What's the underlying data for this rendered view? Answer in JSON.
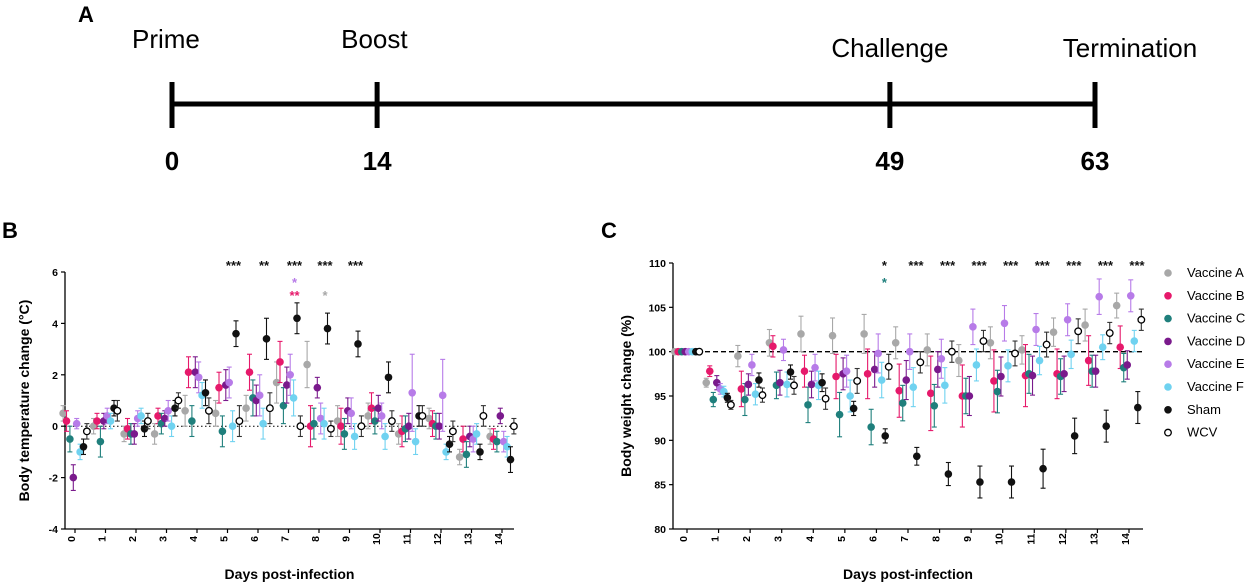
{
  "colors": {
    "Vaccine A": "#a8a8a8",
    "Vaccine B": "#e6196b",
    "Vaccine C": "#1f7f7c",
    "Vaccine D": "#7a1a8c",
    "Vaccine E": "#b77be8",
    "Vaccine F": "#6fd2f0",
    "Sham": "#111111",
    "WCV": "#ffffff"
  },
  "panelA": {
    "letter": "A",
    "events": [
      {
        "label": "Prime",
        "day": "0",
        "value": 0
      },
      {
        "label": "Boost",
        "day": "14",
        "value": 14
      },
      {
        "label": "Challenge",
        "day": "49",
        "value": 49
      },
      {
        "label": "Termination",
        "day": "63",
        "value": 63
      }
    ]
  },
  "chart_data": [
    {
      "panel": "B",
      "type": "scatter",
      "title": "",
      "xlabel": "Days post-infection",
      "ylabel": "Body temperature change (°C)",
      "ylim": [
        -4,
        6
      ],
      "yticks": [
        "-4",
        "-2",
        "0",
        "2",
        "4",
        "6"
      ],
      "categories": [
        "0",
        "1",
        "2",
        "3",
        "4",
        "5",
        "6",
        "7",
        "8",
        "9",
        "10",
        "11",
        "12",
        "13",
        "14"
      ],
      "reference_line": 0,
      "series": [
        {
          "name": "Vaccine A",
          "values": [
            0.5,
            0.0,
            -0.3,
            -0.3,
            0.6,
            0.5,
            0.7,
            1.7,
            2.4,
            0.2,
            0.4,
            -0.3,
            0.3,
            -1.2,
            -0.4
          ],
          "errors": [
            0.3,
            0.3,
            0.3,
            0.4,
            0.6,
            0.5,
            0.5,
            0.8,
            0.9,
            0.6,
            0.5,
            0.4,
            0.4,
            0.3,
            0.3
          ]
        },
        {
          "name": "Vaccine B",
          "values": [
            0.2,
            0.2,
            -0.1,
            0.4,
            2.1,
            1.5,
            2.1,
            2.5,
            0.0,
            0.0,
            0.7,
            -0.2,
            0.1,
            -0.5,
            -0.5
          ],
          "errors": [
            0.4,
            0.3,
            0.4,
            0.3,
            0.6,
            0.6,
            0.7,
            0.8,
            0.8,
            0.7,
            0.6,
            0.6,
            0.5,
            0.5,
            0.4
          ]
        },
        {
          "name": "Vaccine C",
          "values": [
            -0.5,
            -0.6,
            -0.3,
            0.1,
            0.2,
            -0.2,
            1.1,
            0.8,
            0.1,
            -0.3,
            0.2,
            -0.1,
            0.0,
            -1.1,
            -0.6
          ],
          "errors": [
            0.5,
            0.6,
            0.4,
            0.4,
            0.6,
            0.6,
            0.7,
            0.7,
            0.6,
            0.6,
            0.5,
            0.5,
            0.5,
            0.5,
            0.4
          ]
        },
        {
          "name": "Vaccine D",
          "values": [
            -2.0,
            0.2,
            -0.3,
            0.3,
            2.1,
            1.6,
            1.0,
            1.6,
            1.5,
            0.6,
            0.7,
            0.0,
            0.0,
            -0.4,
            0.4
          ],
          "errors": [
            0.5,
            0.3,
            0.4,
            0.3,
            0.6,
            0.6,
            0.6,
            0.7,
            0.4,
            0.5,
            0.5,
            0.5,
            0.5,
            0.4,
            0.3
          ]
        },
        {
          "name": "Vaccine E",
          "values": [
            0.1,
            0.4,
            0.3,
            0.6,
            1.9,
            1.7,
            1.2,
            2.0,
            0.3,
            0.5,
            0.4,
            1.3,
            1.2,
            -0.5,
            -0.6
          ],
          "errors": [
            0.2,
            0.3,
            0.3,
            0.4,
            0.6,
            0.6,
            0.8,
            0.8,
            0.6,
            0.6,
            0.5,
            1.5,
            1.4,
            0.5,
            0.4
          ]
        },
        {
          "name": "Vaccine F",
          "values": [
            -1.0,
            0.2,
            0.4,
            0.0,
            1.2,
            0.0,
            0.1,
            1.1,
            0.1,
            -0.4,
            -0.4,
            -0.6,
            -1.0,
            -0.3,
            -0.8
          ],
          "errors": [
            0.3,
            0.3,
            0.3,
            0.4,
            0.5,
            0.6,
            0.6,
            0.7,
            0.6,
            0.5,
            0.5,
            0.5,
            0.3,
            0.4,
            0.4
          ]
        },
        {
          "name": "Sham",
          "values": [
            -0.8,
            0.7,
            -0.1,
            0.7,
            1.3,
            3.6,
            3.4,
            4.2,
            3.8,
            3.2,
            1.9,
            0.4,
            -0.7,
            -1.0,
            -1.3
          ],
          "errors": [
            0.3,
            0.3,
            0.3,
            0.3,
            0.5,
            0.5,
            0.8,
            0.6,
            0.6,
            0.5,
            0.6,
            0.4,
            0.3,
            0.3,
            0.5
          ]
        },
        {
          "name": "WCV",
          "values": [
            -0.2,
            0.6,
            0.2,
            1.0,
            0.6,
            0.2,
            0.7,
            0.0,
            -0.1,
            0.0,
            0.2,
            0.4,
            -0.2,
            0.4,
            0.0
          ],
          "errors": [
            0.3,
            0.4,
            0.3,
            0.3,
            0.5,
            0.6,
            0.6,
            0.4,
            0.3,
            0.4,
            0.4,
            0.4,
            0.4,
            0.4,
            0.3
          ]
        }
      ],
      "significance": [
        {
          "day": 5,
          "row": 0,
          "text": "***",
          "series": "Sham"
        },
        {
          "day": 6,
          "row": 0,
          "text": "**",
          "series": "Sham"
        },
        {
          "day": 7,
          "row": 0,
          "text": "***",
          "series": "Sham"
        },
        {
          "day": 7,
          "row": 1,
          "text": "*",
          "series": "Vaccine E"
        },
        {
          "day": 7,
          "row": 2,
          "text": "**",
          "series": "Vaccine B"
        },
        {
          "day": 8,
          "row": 0,
          "text": "***",
          "series": "Sham"
        },
        {
          "day": 8,
          "row": 2,
          "text": "*",
          "series": "Vaccine A"
        },
        {
          "day": 9,
          "row": 0,
          "text": "***",
          "series": "Sham"
        }
      ]
    },
    {
      "panel": "C",
      "type": "scatter",
      "title": "",
      "xlabel": "Days post-infection",
      "ylabel": "Body weight change (%)",
      "ylim": [
        80,
        110
      ],
      "yticks": [
        "80",
        "85",
        "90",
        "95",
        "100",
        "105",
        "110"
      ],
      "categories": [
        "0",
        "1",
        "2",
        "3",
        "4",
        "5",
        "6",
        "7",
        "8",
        "9",
        "10",
        "11",
        "12",
        "13",
        "14"
      ],
      "reference_line": 100,
      "series": [
        {
          "name": "Vaccine A",
          "values": [
            100,
            96.5,
            99.5,
            101,
            102,
            101.8,
            102,
            101,
            100.2,
            99,
            101,
            100.2,
            102.2,
            103,
            105.2
          ],
          "errors": [
            0.1,
            0.5,
            1.2,
            1.5,
            2.0,
            2.0,
            2.2,
            1.8,
            1.8,
            1.8,
            1.8,
            1.6,
            1.6,
            1.8,
            1.4
          ]
        },
        {
          "name": "Vaccine B",
          "values": [
            100,
            97.8,
            95.8,
            100.6,
            97.8,
            97.2,
            97.5,
            95.6,
            95.3,
            95.0,
            96.7,
            97.3,
            97.5,
            99.0,
            100.5
          ],
          "errors": [
            0.1,
            0.6,
            2.0,
            1.2,
            1.8,
            2.5,
            2.8,
            3.0,
            4.2,
            3.5,
            3.5,
            3.5,
            2.8,
            2.8,
            2.4
          ]
        },
        {
          "name": "Vaccine C",
          "values": [
            100,
            94.6,
            94.6,
            96.2,
            94.0,
            92.9,
            91.5,
            94.2,
            93.9,
            95.0,
            95.5,
            97.5,
            97.2,
            97.8,
            98.2
          ],
          "errors": [
            0.1,
            0.8,
            1.8,
            1.5,
            2.0,
            2.5,
            2.0,
            2.0,
            2.4,
            2.0,
            2.4,
            2.2,
            2.0,
            1.8,
            1.6
          ]
        },
        {
          "name": "Vaccine D",
          "values": [
            100,
            96.5,
            96.3,
            96.5,
            96.3,
            97.5,
            98.0,
            96.8,
            98.0,
            95.0,
            97.2,
            97.3,
            97.5,
            97.8,
            98.5
          ],
          "errors": [
            0.1,
            0.8,
            1.2,
            1.4,
            1.5,
            1.8,
            2.0,
            2.2,
            2.0,
            2.2,
            2.2,
            2.2,
            2.0,
            1.8,
            1.6
          ]
        },
        {
          "name": "Vaccine E",
          "values": [
            100,
            95.8,
            98.5,
            100.2,
            98.2,
            97.8,
            99.8,
            100.0,
            99.2,
            102.8,
            103.2,
            102.5,
            103.6,
            106.2,
            106.3
          ],
          "errors": [
            0.1,
            0.6,
            1.2,
            1.2,
            1.5,
            1.8,
            2.2,
            2.0,
            2.2,
            2.0,
            2.0,
            1.8,
            1.8,
            2.0,
            1.8
          ]
        },
        {
          "name": "Vaccine F",
          "values": [
            100,
            95.5,
            95.2,
            96.3,
            96.2,
            95.0,
            96.8,
            96.0,
            96.2,
            98.5,
            98.4,
            99.0,
            99.7,
            100.5,
            101.2
          ],
          "errors": [
            0.1,
            0.6,
            1.2,
            1.4,
            1.6,
            1.8,
            2.0,
            2.2,
            2.0,
            1.8,
            1.8,
            1.6,
            1.6,
            1.4,
            1.2
          ]
        },
        {
          "name": "Sham",
          "values": [
            100,
            94.8,
            96.8,
            97.7,
            96.5,
            93.6,
            90.5,
            88.2,
            86.2,
            85.3,
            85.3,
            86.8,
            90.5,
            91.6,
            93.7
          ],
          "errors": [
            0.1,
            0.5,
            0.8,
            0.8,
            1.0,
            0.8,
            0.8,
            1.0,
            1.3,
            1.8,
            1.8,
            2.2,
            2.0,
            1.8,
            1.8
          ]
        },
        {
          "name": "WCV",
          "values": [
            100,
            94.0,
            95.1,
            96.2,
            94.7,
            96.7,
            98.3,
            98.8,
            100.0,
            101.2,
            99.8,
            100.8,
            102.3,
            102.1,
            103.6
          ],
          "errors": [
            0.1,
            0.5,
            0.8,
            1.0,
            1.2,
            1.4,
            1.4,
            1.2,
            1.2,
            1.2,
            1.4,
            1.4,
            1.4,
            1.2,
            1.2
          ]
        }
      ],
      "significance": [
        {
          "day": 6,
          "row": 0,
          "text": "*",
          "series": "Sham"
        },
        {
          "day": 6,
          "row": 1,
          "text": "*",
          "series": "Vaccine C"
        },
        {
          "day": 7,
          "row": 0,
          "text": "***",
          "series": "Sham"
        },
        {
          "day": 8,
          "row": 0,
          "text": "***",
          "series": "Sham"
        },
        {
          "day": 9,
          "row": 0,
          "text": "***",
          "series": "Sham"
        },
        {
          "day": 10,
          "row": 0,
          "text": "***",
          "series": "Sham"
        },
        {
          "day": 11,
          "row": 0,
          "text": "***",
          "series": "Sham"
        },
        {
          "day": 12,
          "row": 0,
          "text": "***",
          "series": "Sham"
        },
        {
          "day": 13,
          "row": 0,
          "text": "***",
          "series": "Sham"
        },
        {
          "day": 14,
          "row": 0,
          "text": "***",
          "series": "Sham"
        }
      ]
    }
  ],
  "legend": {
    "items": [
      "Vaccine A",
      "Vaccine B",
      "Vaccine C",
      "Vaccine D",
      "Vaccine E",
      "Vaccine F",
      "Sham",
      "WCV"
    ]
  }
}
